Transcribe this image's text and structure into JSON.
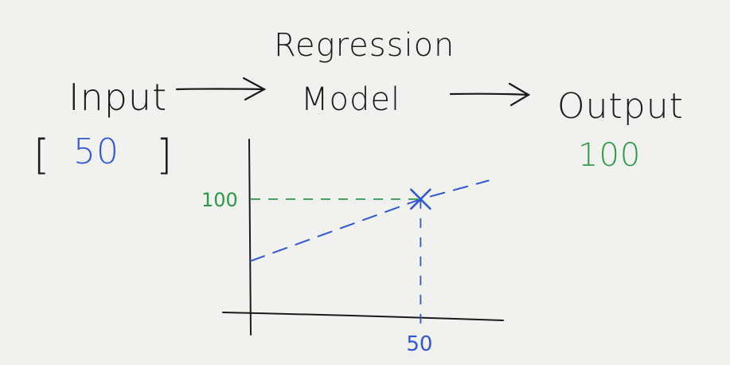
{
  "diagram": {
    "input_label": "Input",
    "input_value_open": "[",
    "input_value": "50",
    "input_value_close": "]",
    "model_label_line1": "Regression",
    "model_label_line2": "Model",
    "output_label": "Output",
    "output_value": "100"
  },
  "colors": {
    "ink": "#1a1a1a",
    "input_blue": "#2f57d6",
    "output_green": "#2a9a46",
    "paper": "#f1f1f0"
  },
  "chart_data": {
    "type": "line",
    "x_tick_labels": [
      "50"
    ],
    "y_tick_labels": [
      "100"
    ],
    "x_ticks": [
      50
    ],
    "y_ticks": [
      100
    ],
    "series": [
      {
        "x": [
          0,
          50,
          70
        ],
        "y": [
          40,
          100,
          118
        ]
      }
    ],
    "highlight_point": {
      "x": 50,
      "y": 100
    },
    "xlim": [
      0,
      75
    ],
    "ylim": [
      -10,
      175
    ],
    "grid": false
  }
}
